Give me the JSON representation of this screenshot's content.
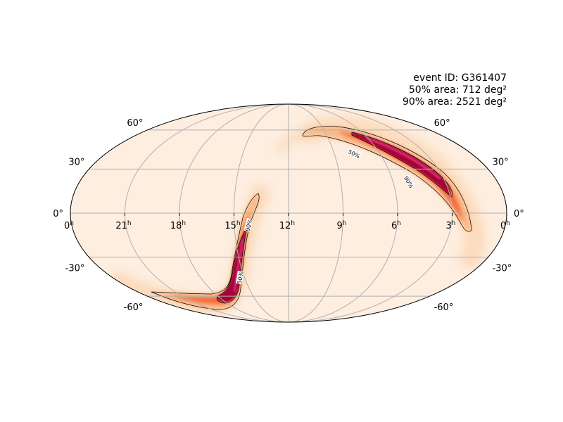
{
  "info": {
    "event_line": "event ID: G361407",
    "area50_line": "50% area: 712 deg²",
    "area90_line": "90% area: 2521 deg²"
  },
  "axes": {
    "ra_labels": [
      {
        "hours": 24,
        "text": "0",
        "unit": "h"
      },
      {
        "hours": 21,
        "text": "21",
        "unit": "h"
      },
      {
        "hours": 18,
        "text": "18",
        "unit": "h"
      },
      {
        "hours": 15,
        "text": "15",
        "unit": "h"
      },
      {
        "hours": 12,
        "text": "12",
        "unit": "h"
      },
      {
        "hours": 9,
        "text": "9",
        "unit": "h"
      },
      {
        "hours": 6,
        "text": "6",
        "unit": "h"
      },
      {
        "hours": 3,
        "text": "3",
        "unit": "h"
      },
      {
        "hours": 0,
        "text": "0",
        "unit": "h"
      }
    ],
    "dec_labels": [
      {
        "deg": 60,
        "text": "60°"
      },
      {
        "deg": 30,
        "text": "30°"
      },
      {
        "deg": 0,
        "text": "0°"
      },
      {
        "deg": -30,
        "text": "-30°"
      },
      {
        "deg": -60,
        "text": "-60°"
      }
    ],
    "meridians_hours": [
      21,
      18,
      15,
      12,
      9,
      6,
      3
    ],
    "parallels_deg": [
      60,
      30,
      0,
      -30,
      -60
    ],
    "projection": "mollweide"
  },
  "contours": [
    {
      "label": "50%",
      "hours": 7.7,
      "deg": 41,
      "angle": 28
    },
    {
      "label": "90%",
      "hours": 5.1,
      "deg": 21,
      "angle": 60
    },
    {
      "label": "50%",
      "hours": 15.3,
      "deg": -45,
      "angle": -80
    },
    {
      "label": "90%",
      "hours": 14.2,
      "deg": -8,
      "angle": -75
    }
  ],
  "colors": {
    "background_fill": "#fdeee0",
    "grid": "#b0b0b0",
    "outline": "#000000",
    "prob_low": "#fda45a",
    "prob_mid": "#e3362a",
    "prob_high": "#a50037"
  }
}
